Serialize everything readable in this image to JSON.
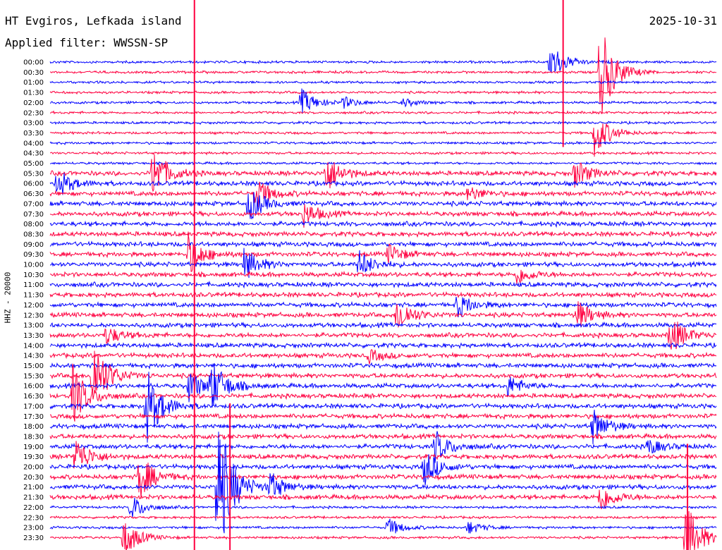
{
  "header": {
    "station": "HT Evgiros, Lefkada island",
    "filter": "Applied filter: WWSSN-SP",
    "date": "2025-10-31"
  },
  "ylabel": "HHZ - 20000",
  "chart_data": {
    "type": "line",
    "title": "HT Evgiros, Lefkada island",
    "ylabel": "HHZ - 20000",
    "tick_labels": [
      "00:00",
      "00:30",
      "01:00",
      "01:30",
      "02:00",
      "02:30",
      "03:00",
      "03:30",
      "04:00",
      "04:30",
      "05:00",
      "05:30",
      "06:00",
      "06:30",
      "07:00",
      "07:30",
      "08:00",
      "08:30",
      "09:00",
      "09:30",
      "10:00",
      "10:30",
      "11:00",
      "11:30",
      "12:00",
      "12:30",
      "13:00",
      "13:30",
      "14:00",
      "14:30",
      "15:00",
      "15:30",
      "16:00",
      "16:30",
      "17:00",
      "17:30",
      "18:00",
      "18:30",
      "19:00",
      "19:30",
      "20:00",
      "20:30",
      "21:00",
      "21:30",
      "22:00",
      "22:30",
      "23:00",
      "23:30"
    ],
    "trace_colors": [
      "#0000ff",
      "#ff0040"
    ],
    "x_range_minutes": [
      0,
      30
    ],
    "grid": false,
    "events": [
      {
        "row": 0,
        "minute": 22.5,
        "amplitude": 30
      },
      {
        "row": 1,
        "minute": 24.7,
        "amplitude": 80
      },
      {
        "row": 4,
        "minute": 11.3,
        "amplitude": 20
      },
      {
        "row": 4,
        "minute": 13.2,
        "amplitude": 8
      },
      {
        "row": 4,
        "minute": 15.9,
        "amplitude": 6
      },
      {
        "row": 7,
        "minute": 24.5,
        "amplitude": 35
      },
      {
        "row": 11,
        "minute": 4.6,
        "amplitude": 40
      },
      {
        "row": 11,
        "minute": 12.4,
        "amplitude": 30
      },
      {
        "row": 11,
        "minute": 23.6,
        "amplitude": 22
      },
      {
        "row": 12,
        "minute": 0.3,
        "amplitude": 22
      },
      {
        "row": 13,
        "minute": 9.2,
        "amplitude": 25
      },
      {
        "row": 13,
        "minute": 18.8,
        "amplitude": 12
      },
      {
        "row": 14,
        "minute": 8.9,
        "amplitude": 28
      },
      {
        "row": 15,
        "minute": 11.4,
        "amplitude": 18
      },
      {
        "row": 19,
        "minute": 6.2,
        "amplitude": 30
      },
      {
        "row": 19,
        "minute": 15.2,
        "amplitude": 15
      },
      {
        "row": 20,
        "minute": 8.7,
        "amplitude": 25
      },
      {
        "row": 20,
        "minute": 13.9,
        "amplitude": 20
      },
      {
        "row": 21,
        "minute": 21.0,
        "amplitude": 15
      },
      {
        "row": 24,
        "minute": 18.3,
        "amplitude": 20
      },
      {
        "row": 25,
        "minute": 15.6,
        "amplitude": 28
      },
      {
        "row": 25,
        "minute": 23.7,
        "amplitude": 22
      },
      {
        "row": 27,
        "minute": 2.5,
        "amplitude": 14
      },
      {
        "row": 27,
        "minute": 27.9,
        "amplitude": 30
      },
      {
        "row": 29,
        "minute": 14.3,
        "amplitude": 10
      },
      {
        "row": 31,
        "minute": 1.9,
        "amplitude": 60
      },
      {
        "row": 32,
        "minute": 6.2,
        "amplitude": 25
      },
      {
        "row": 32,
        "minute": 7.2,
        "amplitude": 40
      },
      {
        "row": 32,
        "minute": 20.6,
        "amplitude": 15
      },
      {
        "row": 33,
        "minute": 1.0,
        "amplitude": 45
      },
      {
        "row": 34,
        "minute": 4.3,
        "amplitude": 60
      },
      {
        "row": 36,
        "minute": 24.4,
        "amplitude": 26
      },
      {
        "row": 38,
        "minute": 17.3,
        "amplitude": 25
      },
      {
        "row": 38,
        "minute": 26.9,
        "amplitude": 12
      },
      {
        "row": 39,
        "minute": 1.1,
        "amplitude": 30
      },
      {
        "row": 40,
        "minute": 16.8,
        "amplitude": 28
      },
      {
        "row": 41,
        "minute": 4.0,
        "amplitude": 35
      },
      {
        "row": 42,
        "minute": 7.5,
        "amplitude": 120
      },
      {
        "row": 42,
        "minute": 9.9,
        "amplitude": 20
      },
      {
        "row": 43,
        "minute": 24.7,
        "amplitude": 25
      },
      {
        "row": 44,
        "minute": 3.6,
        "amplitude": 20
      },
      {
        "row": 46,
        "minute": 15.2,
        "amplitude": 14
      },
      {
        "row": 46,
        "minute": 18.8,
        "amplitude": 10
      },
      {
        "row": 47,
        "minute": 3.3,
        "amplitude": 30
      },
      {
        "row": 47,
        "minute": 28.6,
        "amplitude": 55
      }
    ],
    "long_spikes": [
      {
        "minute": 6.5,
        "row_start": 0,
        "row_end": 47
      },
      {
        "minute": 23.1,
        "row_start": 0,
        "row_end": 7
      },
      {
        "minute": 8.1,
        "row_start": 40,
        "row_end": 47
      },
      {
        "minute": 28.7,
        "row_start": 44,
        "row_end": 47
      }
    ]
  }
}
